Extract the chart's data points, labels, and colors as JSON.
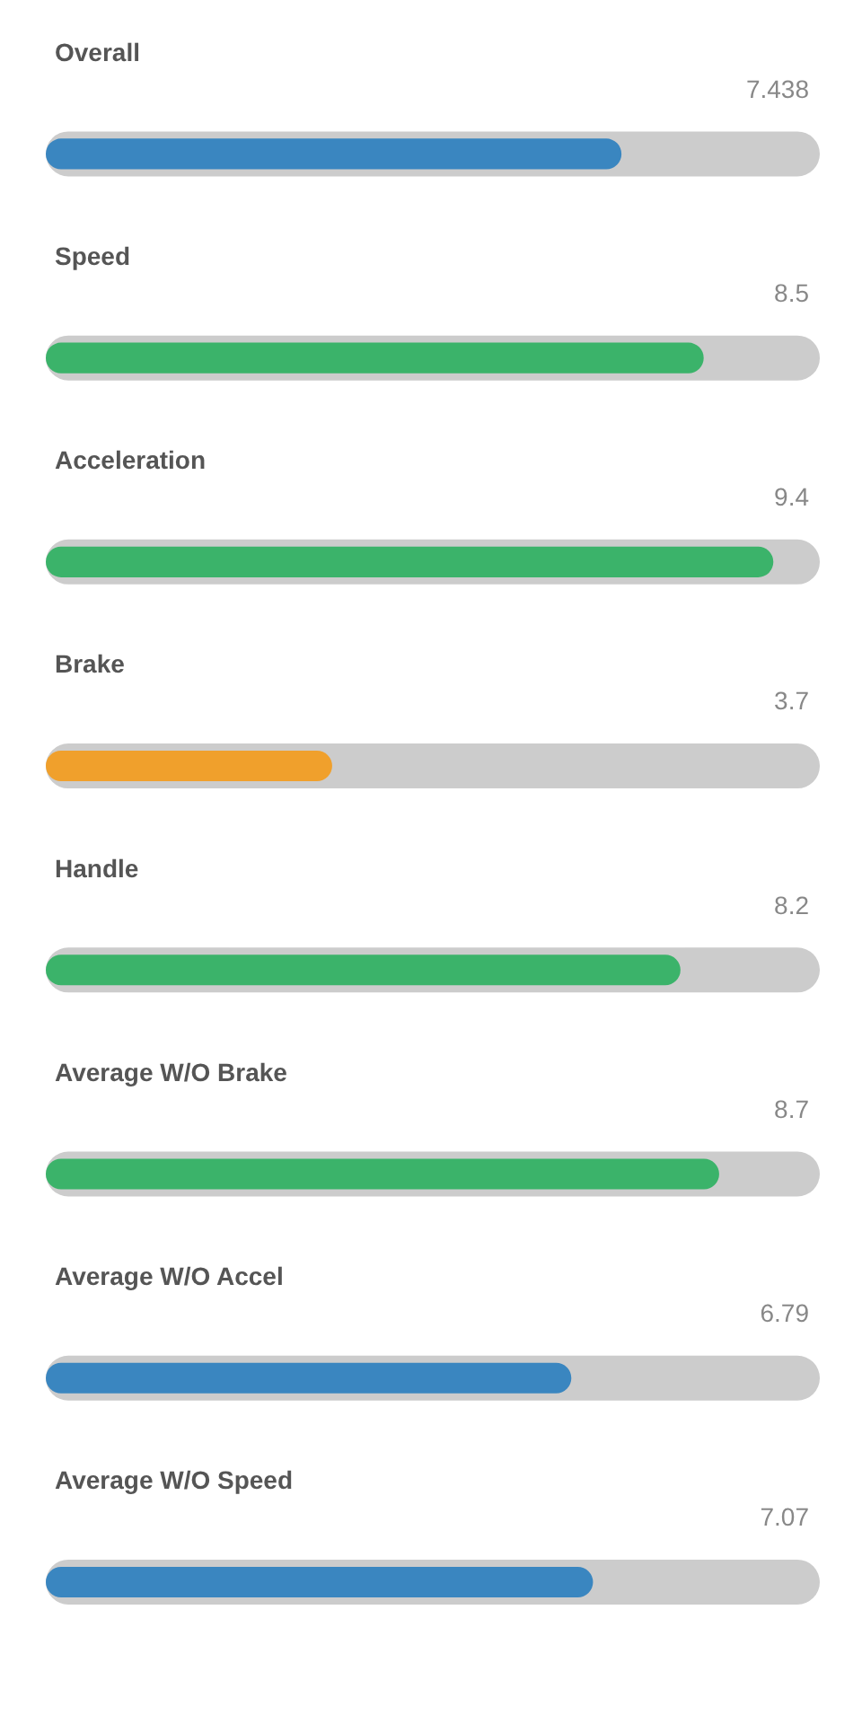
{
  "chart_data": {
    "type": "bar",
    "orientation": "horizontal",
    "categories": [
      "Overall",
      "Speed",
      "Acceleration",
      "Brake",
      "Handle",
      "Average W/O Brake",
      "Average W/O Accel",
      "Average W/O Speed"
    ],
    "values": [
      7.438,
      8.5,
      9.4,
      3.7,
      8.2,
      8.7,
      6.79,
      7.07
    ],
    "colors": [
      "#3a86c0",
      "#3bb36a",
      "#3bb36a",
      "#f0a02c",
      "#3bb36a",
      "#3bb36a",
      "#3a86c0",
      "#3a86c0"
    ],
    "xlim": [
      0,
      10
    ],
    "data_labels": true,
    "tick_labels": false,
    "grid": false
  }
}
